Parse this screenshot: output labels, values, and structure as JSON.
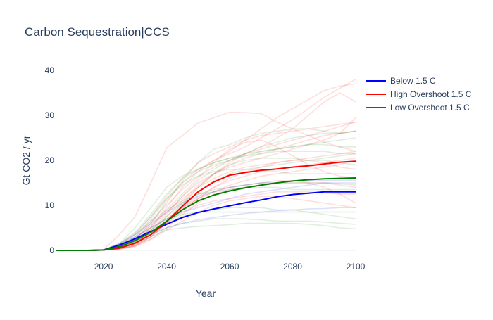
{
  "chart_data": {
    "type": "line",
    "title": "Carbon Sequestration|CCS",
    "xlabel": "Year",
    "ylabel": "Gt CO2 / yr",
    "xlim": [
      2005,
      2100
    ],
    "ylim": [
      0,
      40
    ],
    "xticks": [
      2020,
      2040,
      2060,
      2080,
      2100
    ],
    "yticks": [
      0,
      10,
      20,
      30,
      40
    ],
    "grid": true,
    "legend_position": "top-right",
    "x": [
      2005,
      2010,
      2015,
      2020,
      2025,
      2030,
      2035,
      2040,
      2045,
      2050,
      2055,
      2060,
      2065,
      2070,
      2075,
      2080,
      2085,
      2090,
      2095,
      2100
    ],
    "series": [
      {
        "name": "Below 1.5 C",
        "color": "#0000ff",
        "values": [
          0,
          0,
          0,
          0.1,
          1.2,
          2.6,
          4.2,
          5.8,
          7.3,
          8.4,
          9.2,
          9.9,
          10.6,
          11.2,
          11.9,
          12.4,
          12.7,
          13.0,
          13.0,
          13.0
        ]
      },
      {
        "name": "High Overshoot 1.5 C",
        "color": "#ff0000",
        "values": [
          0,
          0,
          0,
          0.1,
          0.5,
          1.6,
          3.5,
          6.4,
          9.8,
          13.0,
          15.2,
          16.7,
          17.3,
          17.8,
          18.1,
          18.5,
          18.8,
          19.2,
          19.6,
          19.8
        ]
      },
      {
        "name": "Low Overshoot 1.5 C",
        "color": "#008000",
        "values": [
          0,
          0,
          0,
          0.1,
          0.8,
          2.2,
          4.0,
          6.5,
          9.0,
          11.0,
          12.3,
          13.2,
          13.9,
          14.5,
          15.0,
          15.4,
          15.7,
          15.9,
          16.0,
          16.1
        ]
      }
    ],
    "ensemble": [
      {
        "color": "#ff0000",
        "values": [
          0,
          0,
          0,
          0.2,
          3.5,
          7.5,
          15.0,
          22.8,
          25.5,
          28.3,
          29.5,
          30.7,
          30.6,
          30.4,
          28.5,
          27.0,
          25.5,
          24.0,
          23.0,
          22.0
        ]
      },
      {
        "color": "#ff0000",
        "values": [
          0,
          0,
          0,
          0.1,
          0.8,
          2.5,
          6.0,
          11.0,
          15.0,
          18.0,
          20.0,
          21.5,
          23.0,
          25.0,
          27.0,
          29.0,
          31.5,
          34.0,
          36.0,
          38.0
        ]
      },
      {
        "color": "#ff0000",
        "values": [
          0,
          0,
          0,
          0.1,
          0.5,
          1.8,
          5.0,
          9.5,
          14.0,
          17.5,
          20.0,
          22.0,
          24.5,
          27.0,
          29.5,
          31.5,
          33.5,
          35.5,
          36.5,
          37.0
        ]
      },
      {
        "color": "#ff0000",
        "values": [
          0,
          0,
          0,
          0.1,
          0.3,
          1.0,
          3.0,
          6.5,
          10.5,
          14.0,
          17.0,
          19.5,
          21.5,
          23.0,
          25.0,
          27.0,
          30.0,
          33.0,
          35.0,
          33.0
        ]
      },
      {
        "color": "#ff0000",
        "values": [
          0,
          0,
          0,
          0.1,
          1.0,
          3.0,
          6.5,
          10.0,
          13.5,
          16.5,
          18.5,
          20.0,
          21.5,
          22.5,
          23.5,
          24.5,
          25.5,
          26.5,
          27.5,
          28.5
        ]
      },
      {
        "color": "#ff0000",
        "values": [
          0,
          0,
          0,
          0.1,
          0.6,
          2.0,
          5.0,
          8.5,
          12.0,
          15.0,
          17.0,
          18.5,
          19.5,
          20.5,
          21.5,
          22.5,
          23.5,
          24.5,
          26.0,
          29.5
        ]
      },
      {
        "color": "#ff0000",
        "values": [
          0,
          0,
          0,
          0.1,
          0.4,
          1.2,
          3.5,
          6.5,
          9.5,
          12.0,
          14.0,
          15.5,
          16.5,
          17.5,
          18.0,
          18.5,
          19.0,
          19.5,
          20.0,
          20.5
        ]
      },
      {
        "color": "#ff0000",
        "values": [
          0,
          0,
          0,
          0.1,
          0.8,
          2.5,
          5.5,
          9.0,
          12.5,
          16.0,
          19.5,
          22.5,
          24.0,
          24.5,
          23.0,
          21.0,
          19.0,
          17.5,
          16.5,
          16.0
        ]
      },
      {
        "color": "#ff0000",
        "values": [
          0,
          0,
          0,
          0.1,
          0.3,
          0.8,
          2.5,
          5.0,
          8.0,
          10.5,
          12.5,
          13.5,
          14.0,
          14.5,
          14.8,
          15.0,
          15.0,
          15.0,
          14.5,
          14.0
        ]
      },
      {
        "color": "#ff0000",
        "values": [
          0,
          0,
          0,
          0.1,
          0.5,
          1.5,
          4.0,
          7.5,
          11.0,
          14.5,
          17.0,
          19.0,
          20.5,
          21.5,
          22.5,
          23.5,
          24.5,
          25.5,
          26.0,
          26.5
        ]
      },
      {
        "color": "#ff0000",
        "values": [
          0,
          0,
          0,
          0.1,
          0.7,
          2.2,
          4.5,
          7.0,
          9.5,
          11.5,
          13.0,
          14.0,
          14.5,
          15.0,
          15.5,
          15.5,
          15.0,
          14.0,
          12.5,
          10.5
        ]
      },
      {
        "color": "#ff0000",
        "values": [
          0,
          0,
          0,
          0.1,
          1.2,
          3.5,
          7.5,
          12.0,
          16.0,
          19.5,
          21.5,
          23.0,
          24.5,
          25.5,
          26.0,
          26.5,
          27.0,
          27.5,
          28.0,
          28.5
        ]
      },
      {
        "color": "#ff0000",
        "values": [
          0,
          0,
          0,
          0.1,
          0.4,
          1.0,
          2.5,
          4.5,
          6.5,
          8.5,
          10.0,
          11.0,
          11.5,
          12.0,
          12.0,
          11.5,
          11.0,
          10.5,
          10.0,
          9.5
        ]
      },
      {
        "color": "#ff0000",
        "values": [
          0,
          0,
          0,
          0.1,
          0.6,
          1.8,
          4.0,
          6.5,
          9.0,
          11.5,
          14.0,
          16.0,
          17.5,
          18.5,
          19.5,
          20.0,
          20.5,
          21.0,
          21.5,
          22.0
        ]
      },
      {
        "color": "#ff0000",
        "values": [
          0,
          0,
          0,
          0.1,
          0.9,
          2.5,
          5.5,
          8.5,
          11.5,
          14.0,
          16.0,
          17.5,
          18.5,
          19.0,
          19.5,
          20.0,
          20.0,
          19.5,
          18.5,
          18.0
        ]
      },
      {
        "color": "#ff0000",
        "values": [
          0,
          0,
          0,
          0.1,
          0.3,
          1.0,
          3.0,
          6.0,
          9.0,
          11.5,
          13.0,
          14.5,
          15.5,
          16.5,
          17.0,
          17.5,
          18.0,
          18.5,
          19.0,
          20.0
        ]
      },
      {
        "color": "#ff0000",
        "values": [
          0,
          0,
          0,
          0.1,
          0.5,
          1.5,
          3.5,
          6.0,
          8.5,
          10.0,
          11.0,
          11.5,
          12.0,
          12.5,
          13.0,
          13.0,
          13.0,
          12.8,
          12.5,
          12.5
        ]
      },
      {
        "color": "#008000",
        "values": [
          0,
          0,
          0,
          0.1,
          1.0,
          3.0,
          7.0,
          11.5,
          15.0,
          17.5,
          19.0,
          20.0,
          21.0,
          22.0,
          22.5,
          23.0,
          23.5,
          24.0,
          24.5,
          25.0
        ]
      },
      {
        "color": "#008000",
        "values": [
          0,
          0,
          0,
          0.1,
          0.8,
          2.5,
          6.0,
          10.5,
          15.5,
          19.5,
          22.5,
          23.5,
          25.0,
          26.0,
          26.5,
          27.0,
          27.0,
          26.5,
          26.0,
          26.5
        ]
      },
      {
        "color": "#008000",
        "values": [
          0,
          0,
          0,
          0.1,
          0.5,
          1.5,
          3.0,
          4.5,
          5.0,
          5.3,
          5.5,
          5.7,
          6.0,
          6.0,
          6.0,
          6.0,
          5.8,
          5.5,
          5.0,
          4.8
        ]
      },
      {
        "color": "#008000",
        "values": [
          0,
          0,
          0,
          0.1,
          0.7,
          2.0,
          3.5,
          5.0,
          6.0,
          6.5,
          7.0,
          7.0,
          7.0,
          6.8,
          6.5,
          6.5,
          6.5,
          6.3,
          6.0,
          5.8
        ]
      },
      {
        "color": "#008000",
        "values": [
          0,
          0,
          0,
          0.1,
          1.2,
          3.5,
          6.5,
          9.0,
          11.0,
          12.5,
          13.5,
          14.0,
          14.5,
          15.0,
          15.0,
          15.0,
          15.0,
          15.0,
          14.8,
          14.5
        ]
      },
      {
        "color": "#008000",
        "values": [
          0,
          0,
          0,
          0.1,
          1.5,
          4.0,
          8.0,
          12.5,
          16.0,
          18.0,
          19.5,
          20.5,
          21.5,
          22.0,
          22.5,
          23.0,
          23.5,
          23.5,
          23.0,
          23.0
        ]
      },
      {
        "color": "#008000",
        "values": [
          0,
          0,
          0,
          0.1,
          0.8,
          2.0,
          4.0,
          6.0,
          7.5,
          8.5,
          9.0,
          9.5,
          9.5,
          9.5,
          9.0,
          9.0,
          8.5,
          8.0,
          7.5,
          7.0
        ]
      },
      {
        "color": "#008000",
        "values": [
          0,
          0,
          0,
          0.1,
          1.5,
          5.0,
          9.5,
          14.0,
          16.5,
          18.0,
          19.5,
          20.5,
          21.0,
          21.5,
          22.0,
          22.0,
          22.0,
          22.0,
          21.5,
          21.5
        ]
      },
      {
        "color": "#008000",
        "values": [
          0,
          0,
          0,
          0.1,
          0.6,
          1.8,
          3.5,
          6.5,
          10.0,
          13.0,
          15.5,
          17.0,
          18.0,
          18.5,
          19.0,
          19.5,
          20.0,
          20.5,
          21.0,
          21.5
        ]
      },
      {
        "color": "#008000",
        "values": [
          0,
          0,
          0,
          0.1,
          1.0,
          2.5,
          4.5,
          7.5,
          10.5,
          12.5,
          13.0,
          13.5,
          14.0,
          14.0,
          14.0,
          13.5,
          13.5,
          13.5,
          13.5,
          13.5
        ]
      },
      {
        "color": "#008000",
        "values": [
          0,
          0,
          0,
          0.1,
          0.9,
          2.8,
          5.0,
          7.0,
          8.0,
          8.5,
          8.5,
          8.5,
          8.5,
          8.5,
          8.5,
          8.5,
          8.5,
          8.5,
          8.5,
          8.5
        ]
      },
      {
        "color": "#008000",
        "values": [
          0,
          0,
          0,
          0.1,
          0.4,
          1.2,
          3.0,
          6.0,
          10.0,
          14.0,
          17.0,
          19.0,
          20.0,
          20.5,
          20.5,
          20.5,
          20.0,
          20.0,
          19.5,
          19.0
        ]
      },
      {
        "color": "#008000",
        "values": [
          0,
          0,
          0,
          0.1,
          1.3,
          3.8,
          7.5,
          11.5,
          14.5,
          16.5,
          17.5,
          18.0,
          18.0,
          18.0,
          17.5,
          17.0,
          17.0,
          17.0,
          17.0,
          17.0
        ]
      },
      {
        "color": "#008000",
        "values": [
          0,
          0,
          0,
          0.1,
          0.6,
          2.0,
          4.5,
          8.0,
          12.0,
          15.5,
          18.0,
          20.0,
          21.5,
          23.0,
          24.0,
          25.0,
          25.5,
          26.0,
          26.0,
          26.5
        ]
      },
      {
        "color": "#0000ff",
        "values": [
          0,
          0,
          0,
          0.1,
          1.2,
          3.0,
          5.0,
          7.0,
          8.5,
          9.5,
          10.5,
          11.5,
          12.5,
          13.0,
          13.5,
          14.0,
          14.5,
          15.0,
          15.0,
          15.0
        ]
      },
      {
        "color": "#0000ff",
        "values": [
          0,
          0,
          0,
          0.1,
          1.0,
          2.2,
          3.5,
          5.0,
          6.0,
          6.8,
          7.3,
          7.8,
          8.2,
          8.5,
          8.8,
          9.0,
          9.2,
          9.3,
          9.5,
          9.5
        ]
      },
      {
        "color": "#0000ff",
        "values": [
          0,
          0,
          0,
          0.1,
          1.5,
          3.5,
          6.0,
          8.5,
          10.5,
          12.0,
          13.0,
          14.0,
          14.5,
          15.0,
          15.0,
          15.5,
          15.5,
          15.5,
          15.5,
          15.5
        ]
      }
    ]
  }
}
